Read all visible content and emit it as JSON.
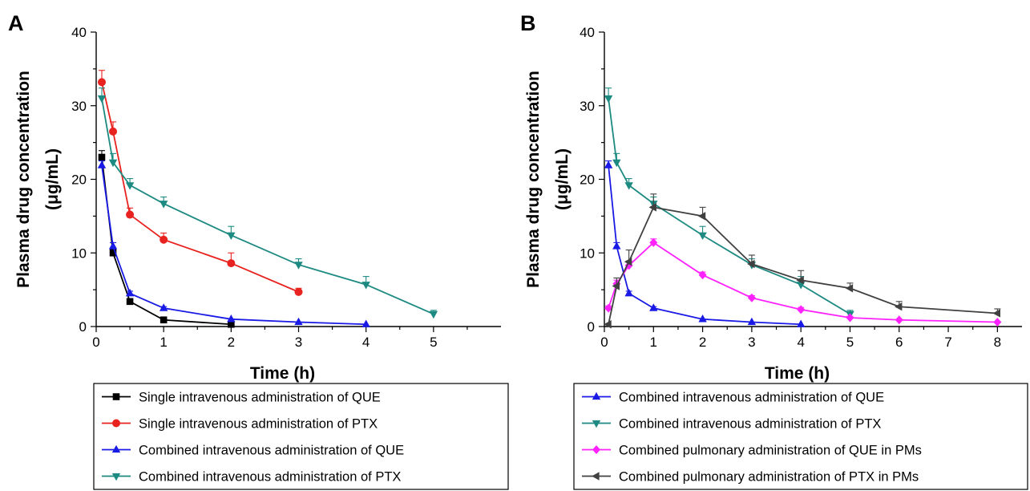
{
  "chart_data": [
    {
      "type": "line",
      "panel": "A",
      "xlabel": "Time (h)",
      "ylabel": [
        "Plasma drug concentration",
        "(μg/mL)"
      ],
      "xlim": [
        0,
        6
      ],
      "ylim": [
        0,
        40
      ],
      "xticks": [
        0,
        1,
        2,
        3,
        4,
        5
      ],
      "yticks": [
        0,
        10,
        20,
        30,
        40
      ],
      "legend_position": "bottom",
      "series": [
        {
          "name": "Single intravenous administration of QUE",
          "color": "#000000",
          "marker": "square",
          "x": [
            0.083,
            0.25,
            0.5,
            1,
            2
          ],
          "y": [
            23.0,
            10.0,
            3.4,
            0.9,
            0.3
          ],
          "err": [
            0.9,
            0.5,
            0.3,
            0.1,
            0.05
          ]
        },
        {
          "name": "Single intravenous administration of PTX",
          "color": "#e8221e",
          "marker": "circle",
          "x": [
            0.083,
            0.25,
            0.5,
            1,
            2,
            3
          ],
          "y": [
            33.2,
            26.5,
            15.2,
            11.8,
            8.6,
            4.7
          ],
          "err": [
            1.6,
            1.3,
            0.9,
            0.9,
            1.4,
            0.5
          ]
        },
        {
          "name": "Combined intravenous administration of QUE",
          "color": "#1a1ae6",
          "marker": "triangle-up",
          "x": [
            0.083,
            0.25,
            0.5,
            1,
            2,
            3,
            4
          ],
          "y": [
            21.9,
            10.9,
            4.5,
            2.5,
            1.0,
            0.6,
            0.3
          ],
          "err": [
            0.6,
            0.5,
            0.3,
            0.2,
            0.1,
            0.1,
            0.05
          ]
        },
        {
          "name": "Combined intravenous administration of PTX",
          "color": "#1d8a82",
          "marker": "triangle-down",
          "x": [
            0.083,
            0.25,
            0.5,
            1,
            2,
            3,
            4,
            5
          ],
          "y": [
            31.0,
            22.3,
            19.2,
            16.7,
            12.4,
            8.4,
            5.7,
            1.7
          ],
          "err": [
            1.4,
            1.2,
            0.9,
            0.9,
            1.2,
            0.8,
            1.1,
            0.5
          ]
        }
      ]
    },
    {
      "type": "line",
      "panel": "B",
      "xlabel": "Time (h)",
      "ylabel": [
        "Plasma drug concentration",
        "(μg/mL)"
      ],
      "xlim": [
        0,
        8.5
      ],
      "ylim": [
        0,
        40
      ],
      "xticks": [
        0,
        1,
        2,
        3,
        4,
        5,
        6,
        7,
        8
      ],
      "yticks": [
        0,
        10,
        20,
        30,
        40
      ],
      "legend_position": "bottom",
      "series": [
        {
          "name": "Combined intravenous administration of QUE",
          "color": "#1a1ae6",
          "marker": "triangle-up",
          "x": [
            0.083,
            0.25,
            0.5,
            1,
            2,
            3,
            4
          ],
          "y": [
            21.9,
            10.9,
            4.5,
            2.5,
            1.0,
            0.6,
            0.3
          ],
          "err": [
            0.6,
            0.5,
            0.3,
            0.2,
            0.1,
            0.1,
            0.05
          ]
        },
        {
          "name": "Combined intravenous administration of PTX",
          "color": "#1d8a82",
          "marker": "triangle-down",
          "x": [
            0.083,
            0.25,
            0.5,
            1,
            2,
            3,
            4,
            5
          ],
          "y": [
            31.0,
            22.3,
            19.2,
            16.7,
            12.4,
            8.4,
            5.7,
            1.7
          ],
          "err": [
            1.4,
            1.2,
            0.9,
            0.9,
            1.2,
            0.8,
            1.1,
            0.5
          ]
        },
        {
          "name": "Combined pulmonary administration of QUE in PMs",
          "color": "#ff22ff",
          "marker": "diamond",
          "x": [
            0.083,
            0.25,
            0.5,
            1,
            2,
            3,
            4,
            5,
            6,
            8
          ],
          "y": [
            2.5,
            5.8,
            8.3,
            11.4,
            7.0,
            3.9,
            2.3,
            1.2,
            0.9,
            0.6
          ],
          "err": [
            0.3,
            0.5,
            0.6,
            0.5,
            0.4,
            0.3,
            0.3,
            0.2,
            0.1,
            0.1
          ]
        },
        {
          "name": "Combined pulmonary administration of PTX in PMs",
          "color": "#404040",
          "marker": "triangle-left",
          "x": [
            0.083,
            0.25,
            0.5,
            1,
            2,
            3,
            4,
            5,
            6,
            8
          ],
          "y": [
            0.3,
            5.5,
            8.8,
            16.2,
            15.0,
            8.5,
            6.3,
            5.2,
            2.7,
            1.8
          ],
          "err": [
            0.1,
            1.1,
            1.6,
            1.8,
            1.2,
            1.2,
            1.3,
            0.7,
            0.7,
            0.6
          ]
        }
      ]
    }
  ]
}
